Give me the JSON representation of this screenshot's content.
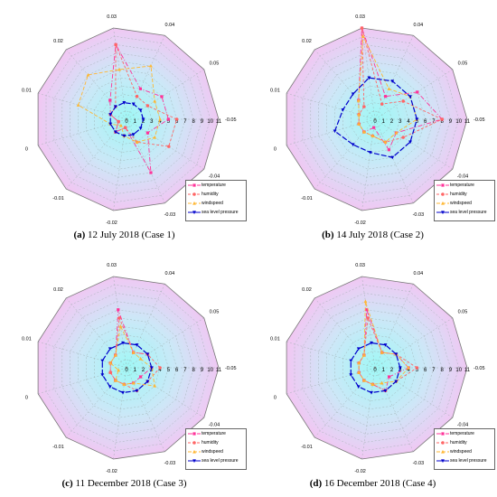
{
  "chart_data": [
    {
      "type": "radar",
      "caption_label": "(a)",
      "caption_text": "12 July 2018 (Case 1)",
      "axis_labels": [
        "-0.05",
        "0.05",
        "0.04",
        "0.03",
        "0.02",
        "0.01",
        "0",
        "-0.01",
        "-0.02",
        "-0.03",
        "-0.04"
      ],
      "ticks": [
        "0",
        "1",
        "2",
        "3",
        "4",
        "5",
        "6",
        "7",
        "8",
        "9",
        "10",
        "11"
      ],
      "rlim": [
        0,
        11
      ],
      "grid": true,
      "legend": "bottom-right",
      "series": [
        {
          "name": "temperature",
          "color": "#ff3399",
          "marker": "square",
          "values": [
            5,
            5,
            4,
            9,
            3,
            2,
            1,
            2,
            1,
            7,
            3
          ]
        },
        {
          "name": "humidity",
          "color": "#ff6666",
          "marker": "circle",
          "values": [
            6,
            3,
            3,
            9,
            2,
            2,
            1,
            2,
            1,
            3,
            6
          ]
        },
        {
          "name": "windspeed",
          "color": "#ffb733",
          "marker": "triangle",
          "values": [
            4,
            4,
            7,
            6,
            7,
            6,
            2,
            1,
            2,
            3,
            4
          ]
        },
        {
          "name": "sea level pressure",
          "color": "#0000cc",
          "marker": "triangle-down",
          "values": [
            2,
            2,
            2,
            2,
            2,
            2,
            2,
            2,
            2,
            2,
            2
          ]
        }
      ]
    },
    {
      "type": "radar",
      "caption_label": "(b)",
      "caption_text": "14 July 2018 (Case 2)",
      "axis_labels": [
        "-0.05",
        "0.05",
        "0.04",
        "0.03",
        "0.02",
        "0.01",
        "0",
        "-0.01",
        "-0.02",
        "-0.03",
        "-0.04"
      ],
      "ticks": [
        "0",
        "1",
        "2",
        "3",
        "4",
        "5",
        "6",
        "7",
        "8",
        "9",
        "10",
        "11"
      ],
      "rlim": [
        0,
        11
      ],
      "grid": true,
      "legend": "bottom-right",
      "series": [
        {
          "name": "temperature",
          "color": "#ff3399",
          "marker": "square",
          "values": [
            8,
            6,
            3,
            11,
            3,
            2,
            2,
            2,
            1,
            4,
            3
          ]
        },
        {
          "name": "humidity",
          "color": "#ff6666",
          "marker": "circle",
          "values": [
            8,
            4,
            2,
            11,
            2,
            2,
            2,
            2,
            2,
            3,
            4
          ]
        },
        {
          "name": "windspeed",
          "color": "#ffb733",
          "marker": "triangle",
          "values": [
            5,
            5,
            4,
            10,
            3,
            2,
            2,
            2,
            2,
            3,
            3
          ]
        },
        {
          "name": "sea level pressure",
          "color": "#0000cc",
          "marker": "triangle-down",
          "values": [
            5,
            5,
            5,
            5,
            4,
            4,
            5,
            4,
            4,
            5,
            5
          ]
        }
      ]
    },
    {
      "type": "radar",
      "caption_label": "(c)",
      "caption_text": "11 December 2018 (Case 3)",
      "axis_labels": [
        "-0.05",
        "0.05",
        "0.04",
        "0.03",
        "0.02",
        "0.01",
        "0",
        "-0.01",
        "-0.02",
        "-0.03",
        "-0.04"
      ],
      "ticks": [
        "0",
        "1",
        "2",
        "3",
        "4",
        "5",
        "6",
        "7",
        "8",
        "9",
        "10",
        "11"
      ],
      "rlim": [
        0,
        11
      ],
      "grid": true,
      "legend": "bottom-right",
      "series": [
        {
          "name": "temperature",
          "color": "#ff3399",
          "marker": "square",
          "values": [
            3,
            3,
            2,
            7,
            2,
            2,
            2,
            2,
            2,
            2,
            2
          ]
        },
        {
          "name": "humidity",
          "color": "#ff6666",
          "marker": "circle",
          "values": [
            4,
            3,
            2,
            6,
            2,
            2,
            2,
            2,
            2,
            3,
            3
          ]
        },
        {
          "name": "windspeed",
          "color": "#ffb733",
          "marker": "triangle",
          "values": [
            3,
            2,
            2,
            5,
            2,
            2,
            1,
            2,
            2,
            2,
            4
          ]
        },
        {
          "name": "sea level pressure",
          "color": "#0000cc",
          "marker": "triangle-down",
          "values": [
            3,
            3,
            3,
            3,
            3,
            3,
            3,
            3,
            3,
            3,
            3
          ]
        }
      ]
    },
    {
      "type": "radar",
      "caption_label": "(d)",
      "caption_text": "16 December 2018 (Case 4)",
      "axis_labels": [
        "-0.05",
        "0.05",
        "0.04",
        "0.03",
        "0.02",
        "0.01",
        "0",
        "-0.01",
        "-0.02",
        "-0.03",
        "-0.04"
      ],
      "ticks": [
        "0",
        "1",
        "2",
        "3",
        "4",
        "5",
        "6",
        "7",
        "8",
        "9",
        "10",
        "11"
      ],
      "rlim": [
        0,
        11
      ],
      "grid": true,
      "legend": "bottom-right",
      "series": [
        {
          "name": "temperature",
          "color": "#ff3399",
          "marker": "square",
          "values": [
            4,
            3,
            2,
            7,
            2,
            2,
            2,
            2,
            2,
            3,
            2
          ]
        },
        {
          "name": "humidity",
          "color": "#ff6666",
          "marker": "circle",
          "values": [
            5,
            3,
            2,
            6,
            2,
            2,
            2,
            2,
            2,
            3,
            3
          ]
        },
        {
          "name": "windspeed",
          "color": "#ffb733",
          "marker": "triangle",
          "values": [
            4,
            3,
            2,
            8,
            2,
            2,
            2,
            2,
            2,
            2,
            3
          ]
        },
        {
          "name": "sea level pressure",
          "color": "#0000cc",
          "marker": "triangle-down",
          "values": [
            3,
            3,
            3,
            3,
            3,
            3,
            3,
            3,
            3,
            3,
            3
          ]
        }
      ]
    }
  ]
}
